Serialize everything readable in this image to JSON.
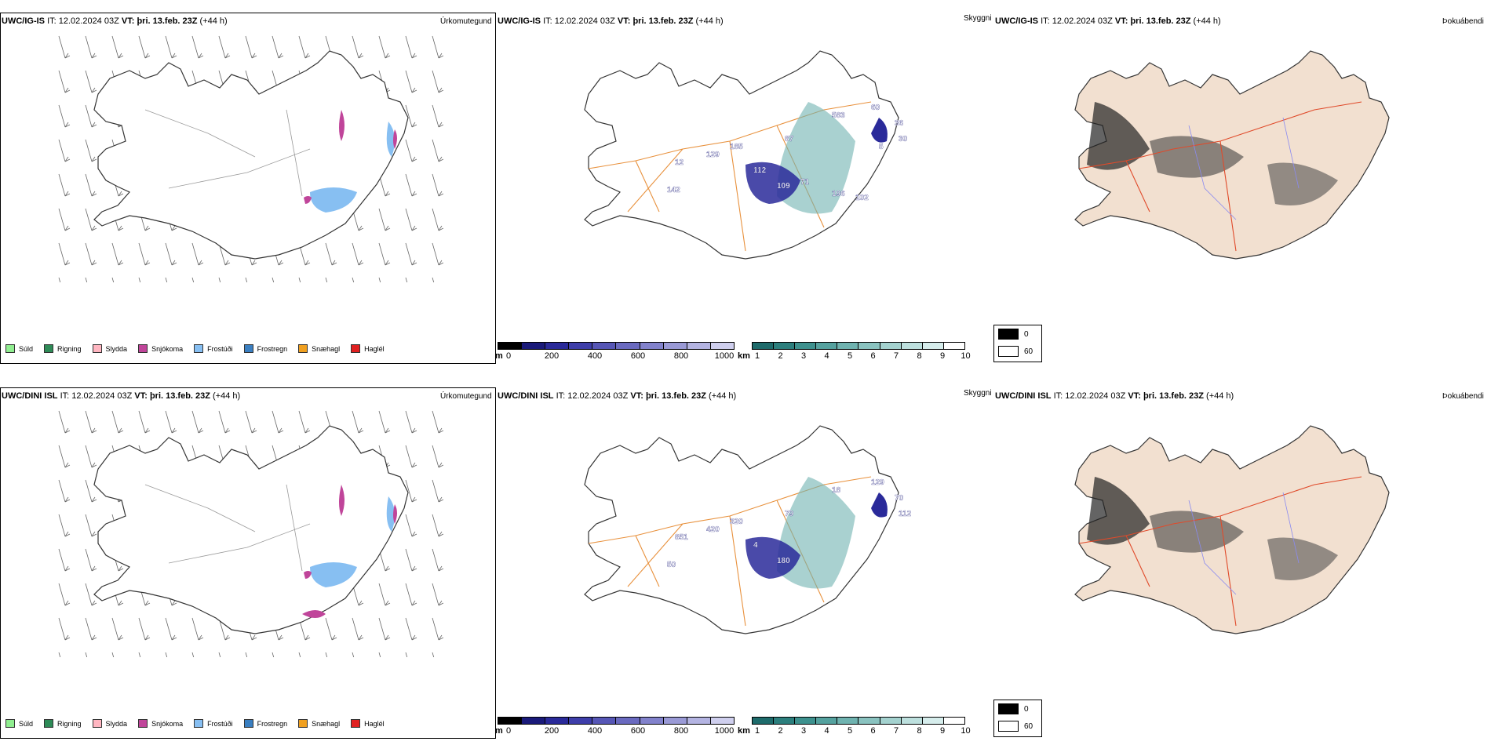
{
  "rows": [
    {
      "model": "UWC/IG-IS",
      "it_label": "IT:",
      "it_value": "12.02.2024 03Z",
      "vt_label": "VT:",
      "vt_value": "þri. 13.feb. 23Z",
      "lead": "(+44 h)",
      "titles": {
        "precip": "Úrkomutegund",
        "visibility": "Skyggni",
        "fog": "Þokuábendi"
      },
      "cloud_labels": [
        "185",
        "12",
        "129",
        "142",
        "87",
        "583",
        "60",
        "36",
        "30",
        "112",
        "109",
        "71",
        "196",
        "102",
        "5"
      ]
    },
    {
      "model": "UWC/DINI ISL",
      "it_label": "IT:",
      "it_value": "12.02.2024 03Z",
      "vt_label": "VT:",
      "vt_value": "þri. 13.feb. 23Z",
      "lead": "(+44 h)",
      "titles": {
        "precip": "Úrkomutegund",
        "visibility": "Skyggni",
        "fog": "Þokuábendi"
      },
      "cloud_labels": [
        "320",
        "851",
        "420",
        "50",
        "79",
        "18",
        "129",
        "70",
        "112",
        "4",
        "180"
      ]
    }
  ],
  "precip_legend": [
    {
      "label": "Súld",
      "color": "#90ee90"
    },
    {
      "label": "Rigning",
      "color": "#2e8b57"
    },
    {
      "label": "Slydda",
      "color": "#ffb6c1"
    },
    {
      "label": "Snjókoma",
      "color": "#c0459a"
    },
    {
      "label": "Frostúði",
      "color": "#87bff2"
    },
    {
      "label": "Frostregn",
      "color": "#3a7fc1"
    },
    {
      "label": "Snæhagl",
      "color": "#f0a020"
    },
    {
      "label": "Haglél",
      "color": "#e02020"
    }
  ],
  "cloud_base_scale": {
    "unit": "m",
    "ticks": [
      "0",
      "200",
      "400",
      "600",
      "800",
      "1000"
    ],
    "colors": [
      "#000000",
      "#1a1a7a",
      "#2a2a9a",
      "#3e3eaa",
      "#5656b6",
      "#6a6ac0",
      "#8282cc",
      "#9a9ad6",
      "#b4b4e2",
      "#cfcfee"
    ]
  },
  "visibility_scale": {
    "unit": "km",
    "ticks": [
      "1",
      "2",
      "3",
      "4",
      "5",
      "6",
      "7",
      "8",
      "9",
      "10"
    ],
    "colors": [
      "#1e6b6b",
      "#2c7f7d",
      "#3d918e",
      "#55a29f",
      "#6fb3b0",
      "#8ac3c0",
      "#a4d2cf",
      "#bde0de",
      "#d6edec",
      "#ffffff"
    ]
  },
  "fog_key": [
    {
      "label": "0",
      "color": "#000000"
    },
    {
      "label": "60",
      "color": "#ffffff"
    }
  ]
}
